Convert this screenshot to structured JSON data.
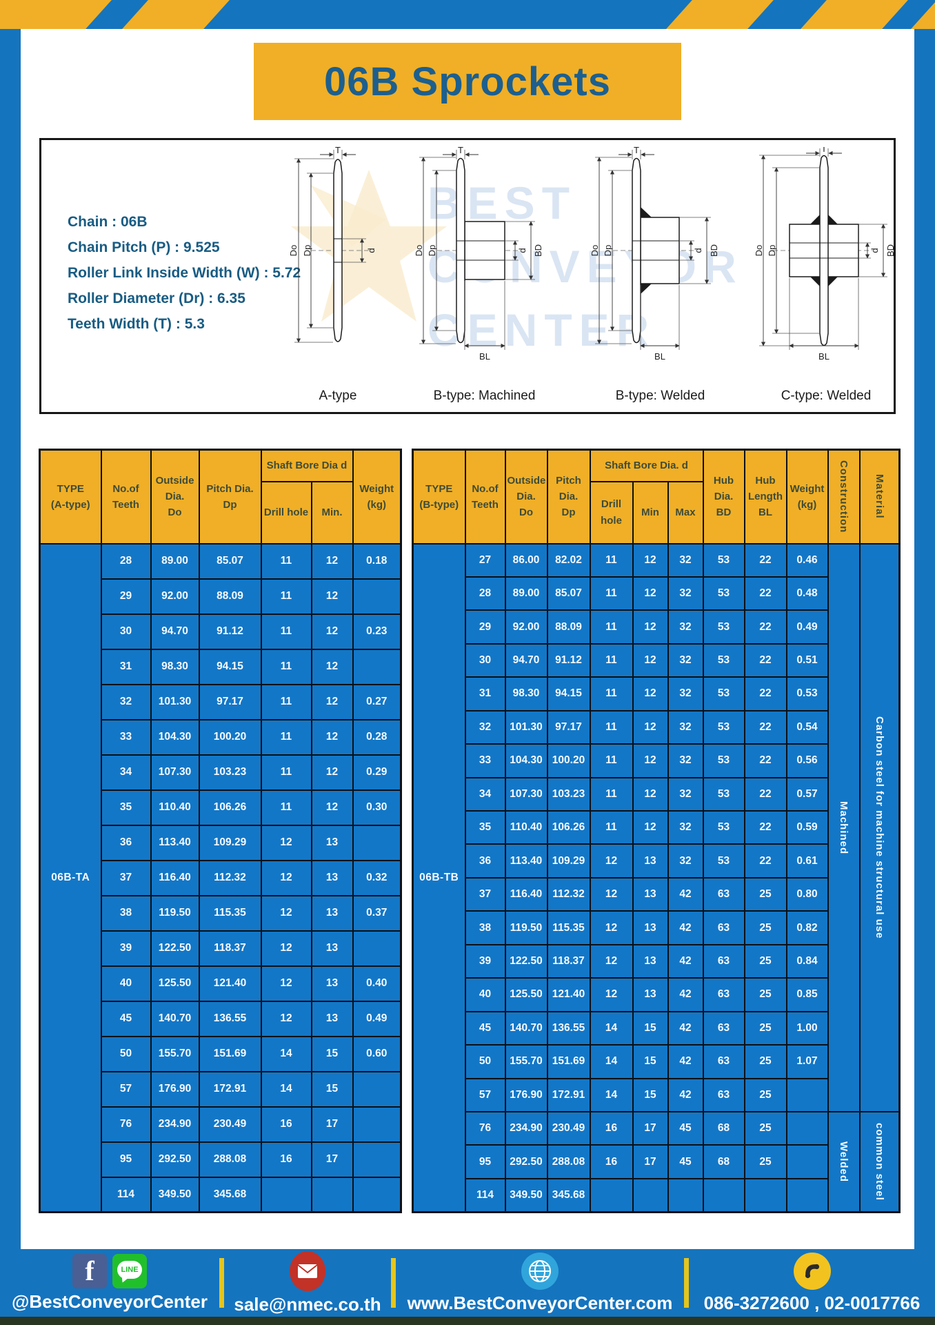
{
  "title": "06B Sprockets",
  "specs": [
    "Chain : 06B",
    "Chain Pitch (P) : 9.525",
    "Roller Link Inside Width (W) : 5.72",
    "Roller Diameter (Dr) : 6.35",
    "Teeth Width (T) : 5.3"
  ],
  "watermark": [
    "BEST",
    "CONVEYOR",
    "CENTER"
  ],
  "drawings": {
    "captions": [
      "A-type",
      "B-type: Machined",
      "B-type: Welded",
      "C-type: Welded"
    ],
    "dims": {
      "t": "T",
      "dO": "Do",
      "dp": "Dp",
      "d": "d",
      "bd": "BD",
      "bl": "BL"
    }
  },
  "colors": {
    "accent_yellow": "#F0AF26",
    "page_blue": "#1574BE",
    "cell_blue": "#1377C7",
    "title_blue": "#1D5F8E",
    "header_text": "#3E4B37"
  },
  "table_a": {
    "type_label": "06B-TA",
    "headers": {
      "type": [
        "TYPE",
        "(A-type)"
      ],
      "teeth": [
        "No.of",
        "Teeth"
      ],
      "outside": [
        "Outside",
        "Dia.",
        "Do"
      ],
      "pitch": [
        "Pitch Dia.",
        "Dp"
      ],
      "shaft_bore": "Shaft Bore Dia d",
      "drill": "Drill hole",
      "min": "Min.",
      "weight": [
        "Weight",
        "(kg)"
      ]
    },
    "rows": [
      [
        "28",
        "89.00",
        "85.07",
        "11",
        "12",
        "0.18"
      ],
      [
        "29",
        "92.00",
        "88.09",
        "11",
        "12",
        ""
      ],
      [
        "30",
        "94.70",
        "91.12",
        "11",
        "12",
        "0.23"
      ],
      [
        "31",
        "98.30",
        "94.15",
        "11",
        "12",
        ""
      ],
      [
        "32",
        "101.30",
        "97.17",
        "11",
        "12",
        "0.27"
      ],
      [
        "33",
        "104.30",
        "100.20",
        "11",
        "12",
        "0.28"
      ],
      [
        "34",
        "107.30",
        "103.23",
        "11",
        "12",
        "0.29"
      ],
      [
        "35",
        "110.40",
        "106.26",
        "11",
        "12",
        "0.30"
      ],
      [
        "36",
        "113.40",
        "109.29",
        "12",
        "13",
        ""
      ],
      [
        "37",
        "116.40",
        "112.32",
        "12",
        "13",
        "0.32"
      ],
      [
        "38",
        "119.50",
        "115.35",
        "12",
        "13",
        "0.37"
      ],
      [
        "39",
        "122.50",
        "118.37",
        "12",
        "13",
        ""
      ],
      [
        "40",
        "125.50",
        "121.40",
        "12",
        "13",
        "0.40"
      ],
      [
        "45",
        "140.70",
        "136.55",
        "12",
        "13",
        "0.49"
      ],
      [
        "50",
        "155.70",
        "151.69",
        "14",
        "15",
        "0.60"
      ],
      [
        "57",
        "176.90",
        "172.91",
        "14",
        "15",
        ""
      ],
      [
        "76",
        "234.90",
        "230.49",
        "16",
        "17",
        ""
      ],
      [
        "95",
        "292.50",
        "288.08",
        "16",
        "17",
        ""
      ],
      [
        "114",
        "349.50",
        "345.68",
        "",
        "",
        ""
      ]
    ]
  },
  "table_b": {
    "type_label": "06B-TB",
    "headers": {
      "type": [
        "TYPE",
        "(B-type)"
      ],
      "teeth": [
        "No.of",
        "Teeth"
      ],
      "outside": [
        "Outside",
        "Dia.",
        "Do"
      ],
      "pitch": [
        "Pitch",
        "Dia.",
        "Dp"
      ],
      "shaft_bore": "Shaft Bore Dia. d",
      "drill": "Drill hole",
      "min": "Min",
      "max": "Max",
      "hub_dia": [
        "Hub",
        "Dia.",
        "BD"
      ],
      "hub_len": [
        "Hub",
        "Length",
        "BL"
      ],
      "weight": [
        "Weight",
        "(kg)"
      ],
      "construction": "Construction",
      "material": "Material"
    },
    "rows": [
      [
        "27",
        "86.00",
        "82.02",
        "11",
        "12",
        "32",
        "53",
        "22",
        "0.46"
      ],
      [
        "28",
        "89.00",
        "85.07",
        "11",
        "12",
        "32",
        "53",
        "22",
        "0.48"
      ],
      [
        "29",
        "92.00",
        "88.09",
        "11",
        "12",
        "32",
        "53",
        "22",
        "0.49"
      ],
      [
        "30",
        "94.70",
        "91.12",
        "11",
        "12",
        "32",
        "53",
        "22",
        "0.51"
      ],
      [
        "31",
        "98.30",
        "94.15",
        "11",
        "12",
        "32",
        "53",
        "22",
        "0.53"
      ],
      [
        "32",
        "101.30",
        "97.17",
        "11",
        "12",
        "32",
        "53",
        "22",
        "0.54"
      ],
      [
        "33",
        "104.30",
        "100.20",
        "11",
        "12",
        "32",
        "53",
        "22",
        "0.56"
      ],
      [
        "34",
        "107.30",
        "103.23",
        "11",
        "12",
        "32",
        "53",
        "22",
        "0.57"
      ],
      [
        "35",
        "110.40",
        "106.26",
        "11",
        "12",
        "32",
        "53",
        "22",
        "0.59"
      ],
      [
        "36",
        "113.40",
        "109.29",
        "12",
        "13",
        "32",
        "53",
        "22",
        "0.61"
      ],
      [
        "37",
        "116.40",
        "112.32",
        "12",
        "13",
        "42",
        "63",
        "25",
        "0.80"
      ],
      [
        "38",
        "119.50",
        "115.35",
        "12",
        "13",
        "42",
        "63",
        "25",
        "0.82"
      ],
      [
        "39",
        "122.50",
        "118.37",
        "12",
        "13",
        "42",
        "63",
        "25",
        "0.84"
      ],
      [
        "40",
        "125.50",
        "121.40",
        "12",
        "13",
        "42",
        "63",
        "25",
        "0.85"
      ],
      [
        "45",
        "140.70",
        "136.55",
        "14",
        "15",
        "42",
        "63",
        "25",
        "1.00"
      ],
      [
        "50",
        "155.70",
        "151.69",
        "14",
        "15",
        "42",
        "63",
        "25",
        "1.07"
      ],
      [
        "57",
        "176.90",
        "172.91",
        "14",
        "15",
        "42",
        "63",
        "25",
        ""
      ],
      [
        "76",
        "234.90",
        "230.49",
        "16",
        "17",
        "45",
        "68",
        "25",
        ""
      ],
      [
        "95",
        "292.50",
        "288.08",
        "16",
        "17",
        "45",
        "68",
        "25",
        ""
      ],
      [
        "114",
        "349.50",
        "345.68",
        "",
        "",
        "",
        "",
        "",
        ""
      ]
    ],
    "construction_groups": [
      {
        "label": "Machined",
        "span": 17
      },
      {
        "label": "Welded",
        "span": 3
      }
    ],
    "material_groups": [
      {
        "label": "Carbon steel for machine structural use",
        "span": 17
      },
      {
        "label": "common steel",
        "span": 3
      }
    ]
  },
  "footer": {
    "items": [
      {
        "label": "@BestConveyorCenter",
        "facebook_glyph": "f",
        "line_glyph": "LINE"
      },
      {
        "label": "sale@nmec.co.th"
      },
      {
        "label": "www.BestConveyorCenter.com"
      },
      {
        "label": "086-3272600 , 02-0017766"
      }
    ]
  }
}
